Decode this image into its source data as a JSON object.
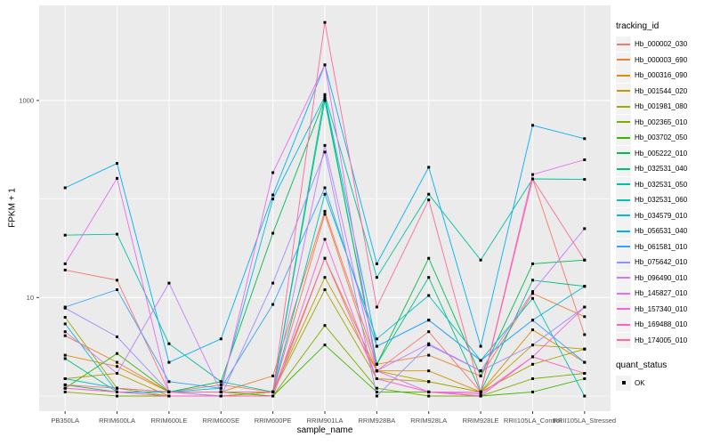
{
  "figure": {
    "background": "#FFFFFF",
    "panel_background": "#EBEBEB",
    "grid_color": "#FFFFFF",
    "axis_text_color": "#4D4D4D",
    "tick_mark_color": "#333333",
    "legend": {
      "tracking_title": "tracking_id",
      "quant_title": "quant_status",
      "quant_items": [
        "OK"
      ],
      "key_background": "#F2F2F2"
    }
  },
  "chart_data": {
    "type": "line",
    "title": "",
    "xlabel": "sample_name",
    "ylabel": "FPKM + 1",
    "y_scale": "log10",
    "ylim": [
      1,
      8000
    ],
    "y_ticks": [
      {
        "value": 10,
        "label": "10"
      },
      {
        "value": 1000,
        "label": "1000"
      }
    ],
    "y_minor_gridlines": [
      1,
      100
    ],
    "grid": true,
    "legend_position": "right",
    "point_style": {
      "shape": "square",
      "color": "#000000",
      "meaning": "quant_status OK"
    },
    "categories": [
      "PB350LA",
      "RRIM600LA",
      "RRIM600LE",
      "RRIM600SE",
      "RRIM600PE",
      "RRIM901LA",
      "RRIM928BA",
      "RRIM928LA",
      "RRIM928LE",
      "RRII105LA_Control",
      "RRII105LA_Stressed"
    ],
    "series": [
      {
        "name": "Hb_000002_030",
        "color": "#F8766D",
        "values": [
          19,
          15,
          1.1,
          1.3,
          1.1,
          70,
          1.8,
          4.5,
          1.1,
          160,
          4.2
        ]
      },
      {
        "name": "Hb_000003_690",
        "color": "#EA8331",
        "values": [
          4.1,
          2.2,
          1.1,
          1.1,
          1.6,
          75,
          2.1,
          2.6,
          1.6,
          11,
          6.4
        ]
      },
      {
        "name": "Hb_000316_090",
        "color": "#D89000",
        "values": [
          2.6,
          2.0,
          1.1,
          1.0,
          1.1,
          25,
          1.8,
          1.8,
          1.1,
          4.7,
          2.2
        ]
      },
      {
        "name": "Hb_001544_020",
        "color": "#C09B00",
        "values": [
          1.5,
          1.7,
          1.0,
          1.0,
          1.1,
          16,
          1.8,
          1.4,
          1.1,
          3.3,
          3.0
        ]
      },
      {
        "name": "Hb_001981_080",
        "color": "#A3A500",
        "values": [
          6.3,
          1.2,
          1.0,
          1.0,
          1.1,
          12,
          1.5,
          1.4,
          1.1,
          2.1,
          3.0
        ]
      },
      {
        "name": "Hb_002365_010",
        "color": "#7CAE00",
        "values": [
          1.1,
          1.0,
          1.0,
          1.0,
          1.0,
          5.2,
          1.2,
          1.0,
          1.0,
          1.5,
          1.7
        ]
      },
      {
        "name": "Hb_003702_050",
        "color": "#39B600",
        "values": [
          1.2,
          2.7,
          1.1,
          1.1,
          1.0,
          3.3,
          1.1,
          1.1,
          1.0,
          1.1,
          1.5
        ]
      },
      {
        "name": "Hb_005222_010",
        "color": "#00BB4E",
        "values": [
          1.3,
          1.1,
          1.1,
          1.4,
          45,
          1050,
          2.1,
          25,
          1.6,
          22,
          24
        ]
      },
      {
        "name": "Hb_032531_040",
        "color": "#00BF7D",
        "values": [
          2.4,
          1.1,
          1.1,
          1.1,
          1.1,
          1000,
          2.1,
          16,
          1.1,
          15,
          13
        ]
      },
      {
        "name": "Hb_032531_050",
        "color": "#00C1A3",
        "values": [
          43,
          44,
          3.4,
          1.4,
          1.1,
          1150,
          16,
          112,
          24,
          160,
          158
        ]
      },
      {
        "name": "Hb_032531_060",
        "color": "#00C0C2",
        "values": [
          1.5,
          1.2,
          1.1,
          1.1,
          1.1,
          112,
          3.8,
          10.5,
          2.3,
          9.8,
          1.0
        ]
      },
      {
        "name": "Hb_034579_010",
        "color": "#00BAE0",
        "values": [
          5.4,
          1.1,
          1.1,
          1.2,
          100,
          1100,
          3.2,
          5.9,
          2.3,
          5.9,
          13
        ]
      },
      {
        "name": "Hb_056531_040",
        "color": "#00B0F6",
        "values": [
          130,
          230,
          2.2,
          3.8,
          110,
          2300,
          22,
          210,
          3.2,
          560,
          410
        ]
      },
      {
        "name": "Hb_061581_010",
        "color": "#35A2FF",
        "values": [
          8,
          12,
          1.4,
          1.2,
          8.5,
          130,
          3.2,
          5.9,
          2.3,
          5.9,
          2.2
        ]
      },
      {
        "name": "Hb_075642_010",
        "color": "#9590FF",
        "values": [
          7.8,
          4.0,
          1.1,
          1.0,
          14,
          300,
          1.0,
          3.3,
          1.8,
          3.3,
          8
        ]
      },
      {
        "name": "Hb_096490_010",
        "color": "#C77CFF",
        "values": [
          4.5,
          1.7,
          14,
          1.1,
          1.1,
          350,
          1.8,
          3.4,
          1.8,
          11.5,
          50
        ]
      },
      {
        "name": "Hb_145827_010",
        "color": "#E76BF3",
        "values": [
          22,
          162,
          1.1,
          1.1,
          185,
          2300,
          1.8,
          1.1,
          1.1,
          177,
          250
        ]
      },
      {
        "name": "Hb_157340_010",
        "color": "#FA62DB",
        "values": [
          1.2,
          1.1,
          1.0,
          1.0,
          1.0,
          39,
          1.5,
          1.1,
          1.0,
          2.5,
          8
        ]
      },
      {
        "name": "Hb_169488_010",
        "color": "#FF62BC",
        "values": [
          1.2,
          1.1,
          1.0,
          1.0,
          1.0,
          25,
          1.5,
          1.1,
          1.05,
          2.5,
          1.7
        ]
      },
      {
        "name": "Hb_174005_010",
        "color": "#FF6A98",
        "values": [
          1.3,
          1.2,
          1.1,
          1.1,
          1.1,
          6200,
          8,
          98,
          1.1,
          160,
          24
        ]
      }
    ]
  }
}
